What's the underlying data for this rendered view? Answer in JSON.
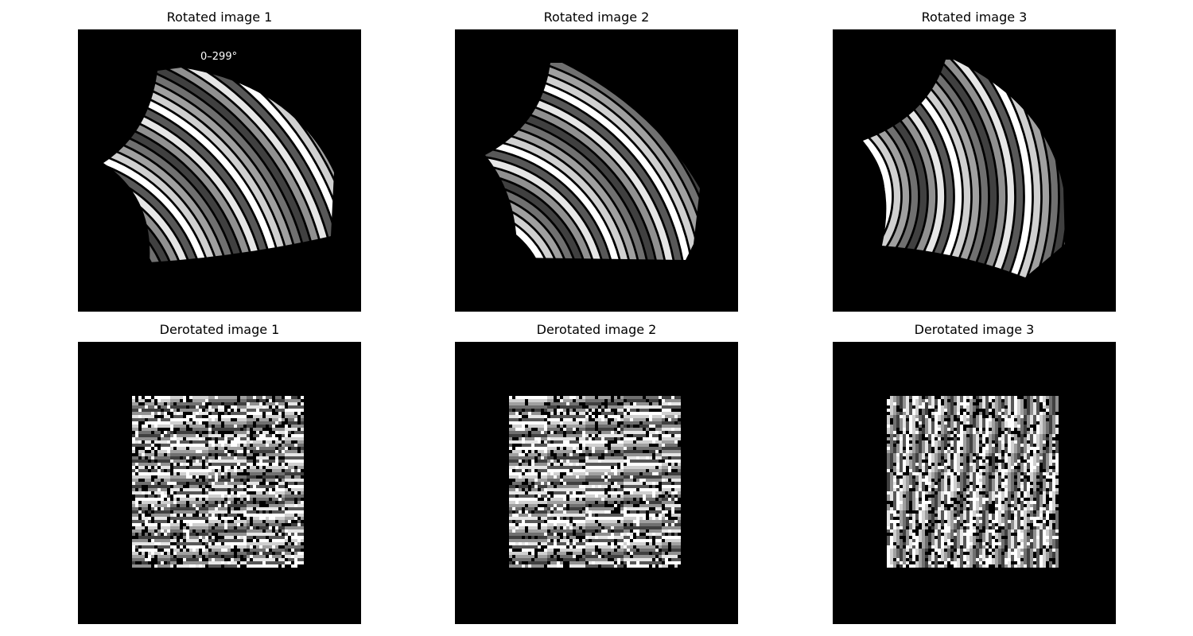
{
  "colors": {
    "figure_background": "#ffffff",
    "panel_background": "#000000",
    "annotation": "#ffffff"
  },
  "panels": [
    {
      "title": "Rotated image 1",
      "annotation": "0–299°",
      "content": "rotated-grayscale-ring-pattern"
    },
    {
      "title": "Rotated image 2",
      "annotation": "",
      "content": "rotated-grayscale-ring-pattern"
    },
    {
      "title": "Rotated image 3",
      "annotation": "",
      "content": "rotated-grayscale-ring-pattern"
    },
    {
      "title": "Derotated image 1",
      "annotation": "",
      "content": "derotated-grayscale-stripe-pattern"
    },
    {
      "title": "Derotated image 2",
      "annotation": "",
      "content": "derotated-grayscale-stripe-pattern"
    },
    {
      "title": "Derotated image 3",
      "annotation": "",
      "content": "derotated-grayscale-stripe-pattern"
    }
  ]
}
